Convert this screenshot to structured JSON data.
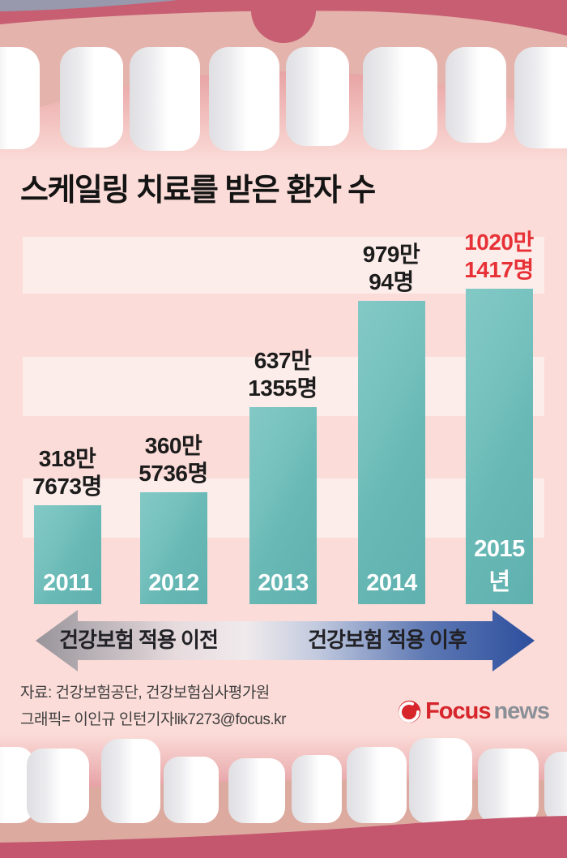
{
  "title": "스케일링 치료를 받은 환자 수",
  "chart_data": {
    "type": "bar",
    "title": "스케일링 치료를 받은 환자 수",
    "categories": [
      "2011",
      "2012",
      "2013",
      "2014",
      "2015년"
    ],
    "values": [
      3187673,
      3605736,
      6371355,
      9790094,
      10201417
    ],
    "bar_labels": [
      [
        "318만",
        "7673명"
      ],
      [
        "360만",
        "5736명"
      ],
      [
        "637만",
        "1355명"
      ],
      [
        "979만",
        "94명"
      ],
      [
        "1020만",
        "1417명"
      ]
    ],
    "unit": "명",
    "ylim": [
      0,
      12000000
    ],
    "grid": "alternating horizontal pink bands every 2,000,000",
    "legend": "none",
    "bar_color": "#6cbab8",
    "label_color": "#1c1c1c",
    "highlight_index": 4,
    "highlight_label_color": "#e73136",
    "year_label_color": "#ffffff"
  },
  "timeline_arrow": {
    "left_label": "건강보험 적용 이전",
    "right_label": "건강보험 적용 이후",
    "left_color": "#98949a",
    "right_color": "#2c4e9d"
  },
  "footer": {
    "source_line1": "자료: 건강보험공단, 건강보험심사평가원",
    "source_line2": "그래픽= 이인규 인턴기자lik7273@focus.kr",
    "logo": {
      "brand": "Focus",
      "suffix": "news",
      "brand_color": "#d6252b",
      "suffix_color": "#8a9097"
    }
  },
  "decoration": {
    "theme": "open mouth with upper and lower teeth",
    "gum_dark": "#c75e72",
    "gum_light": "#e4b3ac",
    "tooth_color": "#ffffff",
    "background_pink": "#fbdcd8"
  }
}
